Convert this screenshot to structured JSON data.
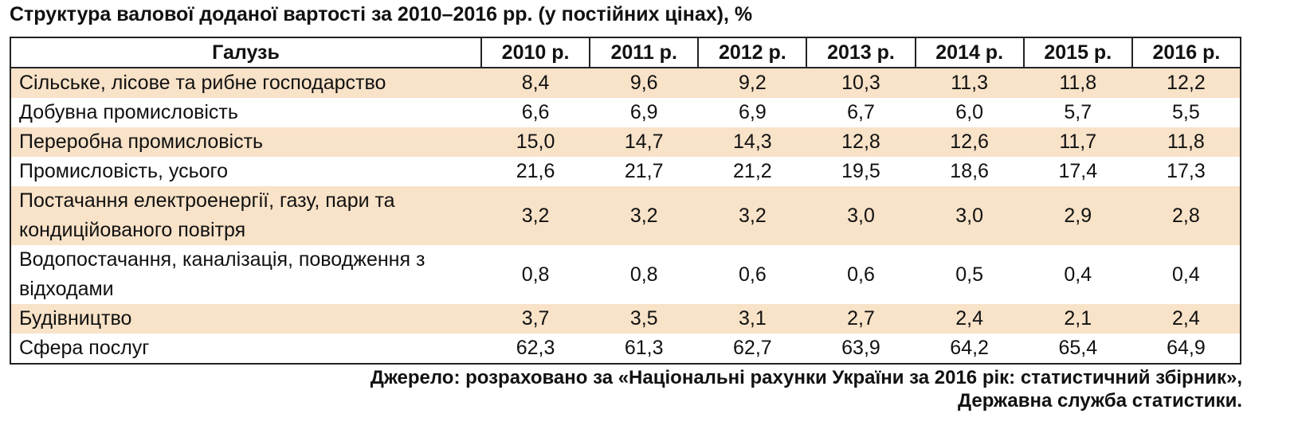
{
  "title": "Структура валової доданої вартості за 2010–2016 рр. (у постійних цінах), %",
  "table": {
    "header": [
      "Галузь",
      "2010 р.",
      "2011 р.",
      "2012 р.",
      "2013 р.",
      "2014 р.",
      "2015 р.",
      "2016 р."
    ],
    "rows": [
      [
        "Сільське, лісове та рибне господарство",
        "8,4",
        "9,6",
        "9,2",
        "10,3",
        "11,3",
        "11,8",
        "12,2"
      ],
      [
        "Добувна промисловість",
        "6,6",
        "6,9",
        "6,9",
        "6,7",
        "6,0",
        "5,7",
        "5,5"
      ],
      [
        "Переробна промисловість",
        "15,0",
        "14,7",
        "14,3",
        "12,8",
        "12,6",
        "11,7",
        "11,8"
      ],
      [
        "Промисловість, усього",
        "21,6",
        "21,7",
        "21,2",
        "19,5",
        "18,6",
        "17,4",
        "17,3"
      ],
      [
        "Постачання електроенергії, газу, пари та кондиційованого повітря",
        "3,2",
        "3,2",
        "3,2",
        "3,0",
        "3,0",
        "2,9",
        "2,8"
      ],
      [
        "Водопостачання, каналізація, поводження з відходами",
        "0,8",
        "0,8",
        "0,6",
        "0,6",
        "0,5",
        "0,4",
        "0,4"
      ],
      [
        "Будівництво",
        "3,7",
        "3,5",
        "3,1",
        "2,7",
        "2,4",
        "2,1",
        "2,4"
      ],
      [
        "Сфера послуг",
        "62,3",
        "61,3",
        "62,7",
        "63,9",
        "64,2",
        "65,4",
        "64,9"
      ]
    ]
  },
  "source": [
    "Джерело: розраховано за «Національні рахунки України за 2016 рік: статистичний збірник»,",
    "Державна служба статистики."
  ]
}
